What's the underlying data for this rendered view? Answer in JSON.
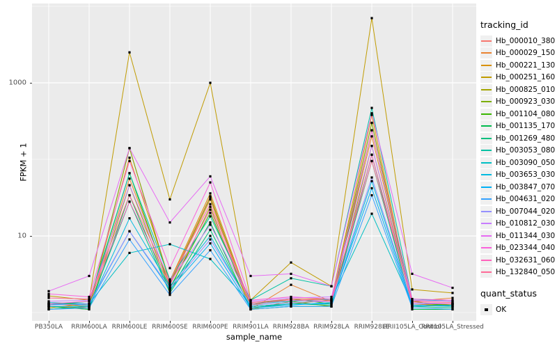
{
  "figure": {
    "panel_bg": "#EBEBEB",
    "grid_color": "#FFFFFF",
    "point_color": "#000000",
    "tick_label_color": "#4D4D4D"
  },
  "chart_data": {
    "type": "line",
    "title": "",
    "xlabel": "sample_name",
    "ylabel": "FPKM + 1",
    "y_scale": "log10",
    "ylim": [
      0.78,
      10900
    ],
    "y_ticks": [
      10,
      1000
    ],
    "y_minor_gridlines": [
      1,
      100,
      10000
    ],
    "grid": true,
    "legend_position": "right",
    "categories": [
      "PB350LA",
      "RRIM600LA",
      "RRIM600LE",
      "RRIM600SE",
      "RRIM600PE",
      "RRIM901LA",
      "RRIM928BA",
      "RRIM928LA",
      "RRIM928LE",
      "RRII105LA_Control",
      "RRII105LA_Stressed"
    ],
    "series": [
      {
        "name": "Hb_000010_380",
        "color": "#F8766D",
        "values": [
          1.2,
          1.15,
          140,
          2.5,
          33,
          1.2,
          1.3,
          1.3,
          300,
          1.3,
          1.2
        ]
      },
      {
        "name": "Hb_000029_150",
        "color": "#EA8331",
        "values": [
          1.3,
          1.2,
          56,
          2.3,
          30,
          1.1,
          2.3,
          1.4,
          200,
          1.4,
          1.55
        ]
      },
      {
        "name": "Hb_000221_130",
        "color": "#D89000",
        "values": [
          1.15,
          1.3,
          105,
          2.6,
          36,
          1.25,
          1.5,
          1.5,
          380,
          1.2,
          1.3
        ]
      },
      {
        "name": "Hb_000251_160",
        "color": "#C09B00",
        "values": [
          1.65,
          1.45,
          2500,
          30,
          1000,
          1.45,
          4.5,
          2.2,
          7000,
          2.0,
          1.8
        ]
      },
      {
        "name": "Hb_000825_010",
        "color": "#A3A500",
        "values": [
          1.2,
          1.1,
          46,
          2.0,
          24,
          1.1,
          1.4,
          1.2,
          150,
          1.3,
          1.25
        ]
      },
      {
        "name": "Hb_000923_030",
        "color": "#7CAE00",
        "values": [
          1.1,
          1.2,
          140,
          2.4,
          32,
          1.2,
          1.3,
          1.45,
          300,
          1.2,
          1.3
        ]
      },
      {
        "name": "Hb_001104_080",
        "color": "#39B600",
        "values": [
          1.3,
          1.3,
          66,
          2.1,
          20,
          1.3,
          1.5,
          1.3,
          240,
          1.4,
          1.2
        ]
      },
      {
        "name": "Hb_001135_170",
        "color": "#00BB4E",
        "values": [
          1.2,
          1.1,
          34,
          1.9,
          15,
          1.1,
          1.2,
          1.2,
          115,
          1.1,
          1.1
        ]
      },
      {
        "name": "Hb_001269_480",
        "color": "#00BF7D",
        "values": [
          1.1,
          1.2,
          28,
          1.8,
          12,
          1.15,
          1.3,
          1.25,
          95,
          1.2,
          1.15
        ]
      },
      {
        "name": "Hb_003053_080",
        "color": "#00C1A3",
        "values": [
          1.25,
          1.4,
          66,
          2.7,
          18,
          1.45,
          2.8,
          2.2,
          470,
          1.5,
          1.4
        ]
      },
      {
        "name": "Hb_003090_050",
        "color": "#00BFC4",
        "values": [
          1.35,
          1.3,
          6,
          7.8,
          5,
          1.3,
          1.4,
          1.5,
          19.5,
          1.3,
          1.3
        ]
      },
      {
        "name": "Hb_003653_030",
        "color": "#00BAE0",
        "values": [
          1.2,
          1.2,
          17,
          2.2,
          10,
          1.2,
          1.3,
          1.3,
          52,
          1.25,
          1.2
        ]
      },
      {
        "name": "Hb_003847_070",
        "color": "#00B0F6",
        "values": [
          1.3,
          1.25,
          11.5,
          2.0,
          8,
          1.15,
          1.25,
          1.35,
          42,
          1.2,
          1.25
        ]
      },
      {
        "name": "Hb_004631_020",
        "color": "#35A2FF",
        "values": [
          1.1,
          1.15,
          9,
          1.7,
          6.5,
          1.1,
          1.2,
          1.2,
          34,
          1.15,
          1.1
        ]
      },
      {
        "name": "Hb_007044_020",
        "color": "#9590FF",
        "values": [
          1.25,
          1.3,
          11.5,
          2.1,
          9,
          1.25,
          1.35,
          1.4,
          58,
          1.3,
          1.3
        ]
      },
      {
        "name": "Hb_010812_030",
        "color": "#C77CFF",
        "values": [
          1.4,
          1.45,
          46,
          2.5,
          14,
          1.4,
          1.55,
          1.6,
          150,
          1.45,
          1.4
        ]
      },
      {
        "name": "Hb_011344_030",
        "color": "#E76BF3",
        "values": [
          1.9,
          3.0,
          140,
          15,
          60,
          3.0,
          3.2,
          2.2,
          400,
          3.2,
          2.1
        ]
      },
      {
        "name": "Hb_023344_040",
        "color": "#FA62DB",
        "values": [
          1.75,
          1.6,
          95,
          3.8,
          50,
          1.45,
          1.6,
          1.5,
          240,
          1.5,
          1.45
        ]
      },
      {
        "name": "Hb_032631_060",
        "color": "#FF62BC",
        "values": [
          1.3,
          1.4,
          28,
          2.3,
          22,
          1.3,
          1.45,
          1.4,
          115,
          1.35,
          1.3
        ]
      },
      {
        "name": "Hb_132840_050",
        "color": "#FF6A98",
        "values": [
          1.55,
          1.5,
          34,
          2.6,
          26,
          1.35,
          1.5,
          1.45,
          95,
          1.4,
          1.35
        ]
      }
    ]
  },
  "legend": {
    "tracking_title": "tracking_id",
    "quant_title": "quant_status",
    "quant_items": [
      {
        "label": "OK"
      }
    ]
  }
}
